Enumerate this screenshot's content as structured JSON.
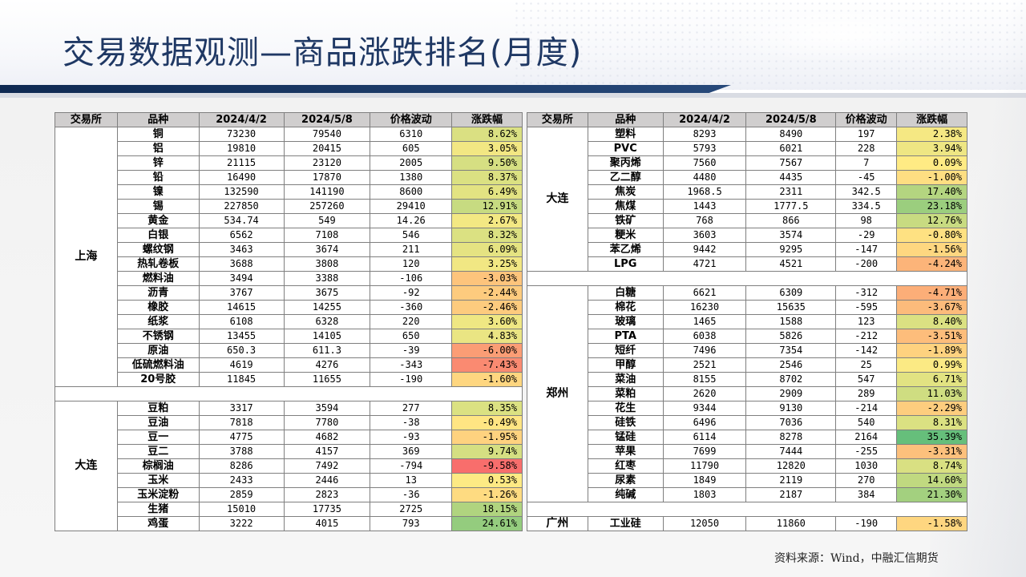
{
  "title": "交易数据观测—商品涨跌排名(月度)",
  "source": "资料来源：Wind，中融汇信期货",
  "headers": [
    "交易所",
    "品种",
    "2024/4/2",
    "2024/5/8",
    "价格波动",
    "涨跌幅"
  ],
  "colors": {
    "title": "#1f3864",
    "band_dark": "#0f2a52",
    "header_bg": "#d0cece",
    "neg_strong": "#f8696b",
    "mid": "#ffeb84",
    "pos_strong": "#63be7b"
  },
  "left": {
    "group1": {
      "exchange": "上海",
      "rows": [
        [
          "铜",
          "73230",
          "79540",
          "6310",
          "8.62%"
        ],
        [
          "铝",
          "19810",
          "20415",
          "605",
          "3.05%"
        ],
        [
          "锌",
          "21115",
          "23120",
          "2005",
          "9.50%"
        ],
        [
          "铅",
          "16490",
          "17870",
          "1380",
          "8.37%"
        ],
        [
          "镍",
          "132590",
          "141190",
          "8600",
          "6.49%"
        ],
        [
          "锡",
          "227850",
          "257260",
          "29410",
          "12.91%"
        ],
        [
          "黄金",
          "534.74",
          "549",
          "14.26",
          "2.67%"
        ],
        [
          "白银",
          "6562",
          "7108",
          "546",
          "8.32%"
        ],
        [
          "螺纹钢",
          "3463",
          "3674",
          "211",
          "6.09%"
        ],
        [
          "热轧卷板",
          "3688",
          "3808",
          "120",
          "3.25%"
        ],
        [
          "燃料油",
          "3494",
          "3388",
          "-106",
          "-3.03%"
        ],
        [
          "沥青",
          "3767",
          "3675",
          "-92",
          "-2.44%"
        ],
        [
          "橡胶",
          "14615",
          "14255",
          "-360",
          "-2.46%"
        ],
        [
          "纸浆",
          "6108",
          "6328",
          "220",
          "3.60%"
        ],
        [
          "不锈钢",
          "13455",
          "14105",
          "650",
          "4.83%"
        ],
        [
          "原油",
          "650.3",
          "611.3",
          "-39",
          "-6.00%"
        ],
        [
          "低硫燃料油",
          "4619",
          "4276",
          "-343",
          "-7.43%"
        ],
        [
          "20号胶",
          "11845",
          "11655",
          "-190",
          "-1.60%"
        ]
      ]
    },
    "group2": {
      "exchange": "大连",
      "rows": [
        [
          "豆粕",
          "3317",
          "3594",
          "277",
          "8.35%"
        ],
        [
          "豆油",
          "7818",
          "7780",
          "-38",
          "-0.49%"
        ],
        [
          "豆一",
          "4775",
          "4682",
          "-93",
          "-1.95%"
        ],
        [
          "豆二",
          "3788",
          "4157",
          "369",
          "9.74%"
        ],
        [
          "棕榈油",
          "8286",
          "7492",
          "-794",
          "-9.58%"
        ],
        [
          "玉米",
          "2433",
          "2446",
          "13",
          "0.53%"
        ],
        [
          "玉米淀粉",
          "2859",
          "2823",
          "-36",
          "-1.26%"
        ],
        [
          "生猪",
          "15010",
          "17735",
          "2725",
          "18.15%"
        ],
        [
          "鸡蛋",
          "3222",
          "4015",
          "793",
          "24.61%"
        ]
      ]
    }
  },
  "right": {
    "group1": {
      "exchange": "大连",
      "rows": [
        [
          "塑料",
          "8293",
          "8490",
          "197",
          "2.38%"
        ],
        [
          "PVC",
          "5793",
          "6021",
          "228",
          "3.94%"
        ],
        [
          "聚丙烯",
          "7560",
          "7567",
          "7",
          "0.09%"
        ],
        [
          "乙二醇",
          "4480",
          "4435",
          "-45",
          "-1.00%"
        ],
        [
          "焦炭",
          "1968.5",
          "2311",
          "342.5",
          "17.40%"
        ],
        [
          "焦煤",
          "1443",
          "1777.5",
          "334.5",
          "23.18%"
        ],
        [
          "铁矿",
          "768",
          "866",
          "98",
          "12.76%"
        ],
        [
          "粳米",
          "3603",
          "3574",
          "-29",
          "-0.80%"
        ],
        [
          "苯乙烯",
          "9442",
          "9295",
          "-147",
          "-1.56%"
        ],
        [
          "LPG",
          "4721",
          "4521",
          "-200",
          "-4.24%"
        ]
      ]
    },
    "group2": {
      "exchange": "郑州",
      "rows": [
        [
          "白糖",
          "6621",
          "6309",
          "-312",
          "-4.71%"
        ],
        [
          "棉花",
          "16230",
          "15635",
          "-595",
          "-3.67%"
        ],
        [
          "玻璃",
          "1465",
          "1588",
          "123",
          "8.40%"
        ],
        [
          "PTA",
          "6038",
          "5826",
          "-212",
          "-3.51%"
        ],
        [
          "短纤",
          "7496",
          "7354",
          "-142",
          "-1.89%"
        ],
        [
          "甲醇",
          "2521",
          "2546",
          "25",
          "0.99%"
        ],
        [
          "菜油",
          "8155",
          "8702",
          "547",
          "6.71%"
        ],
        [
          "菜粕",
          "2620",
          "2909",
          "289",
          "11.03%"
        ],
        [
          "花生",
          "9344",
          "9130",
          "-214",
          "-2.29%"
        ],
        [
          "硅铁",
          "6496",
          "7036",
          "540",
          "8.31%"
        ],
        [
          "锰硅",
          "6114",
          "8278",
          "2164",
          "35.39%"
        ],
        [
          "苹果",
          "7699",
          "7444",
          "-255",
          "-3.31%"
        ],
        [
          "红枣",
          "11790",
          "12820",
          "1030",
          "8.74%"
        ],
        [
          "尿素",
          "1849",
          "2119",
          "270",
          "14.60%"
        ],
        [
          "纯碱",
          "1803",
          "2187",
          "384",
          "21.30%"
        ]
      ]
    },
    "group3": {
      "exchange": "广州",
      "rows": [
        [
          "工业硅",
          "12050",
          "11860",
          "-190",
          "-1.58%"
        ]
      ]
    }
  }
}
